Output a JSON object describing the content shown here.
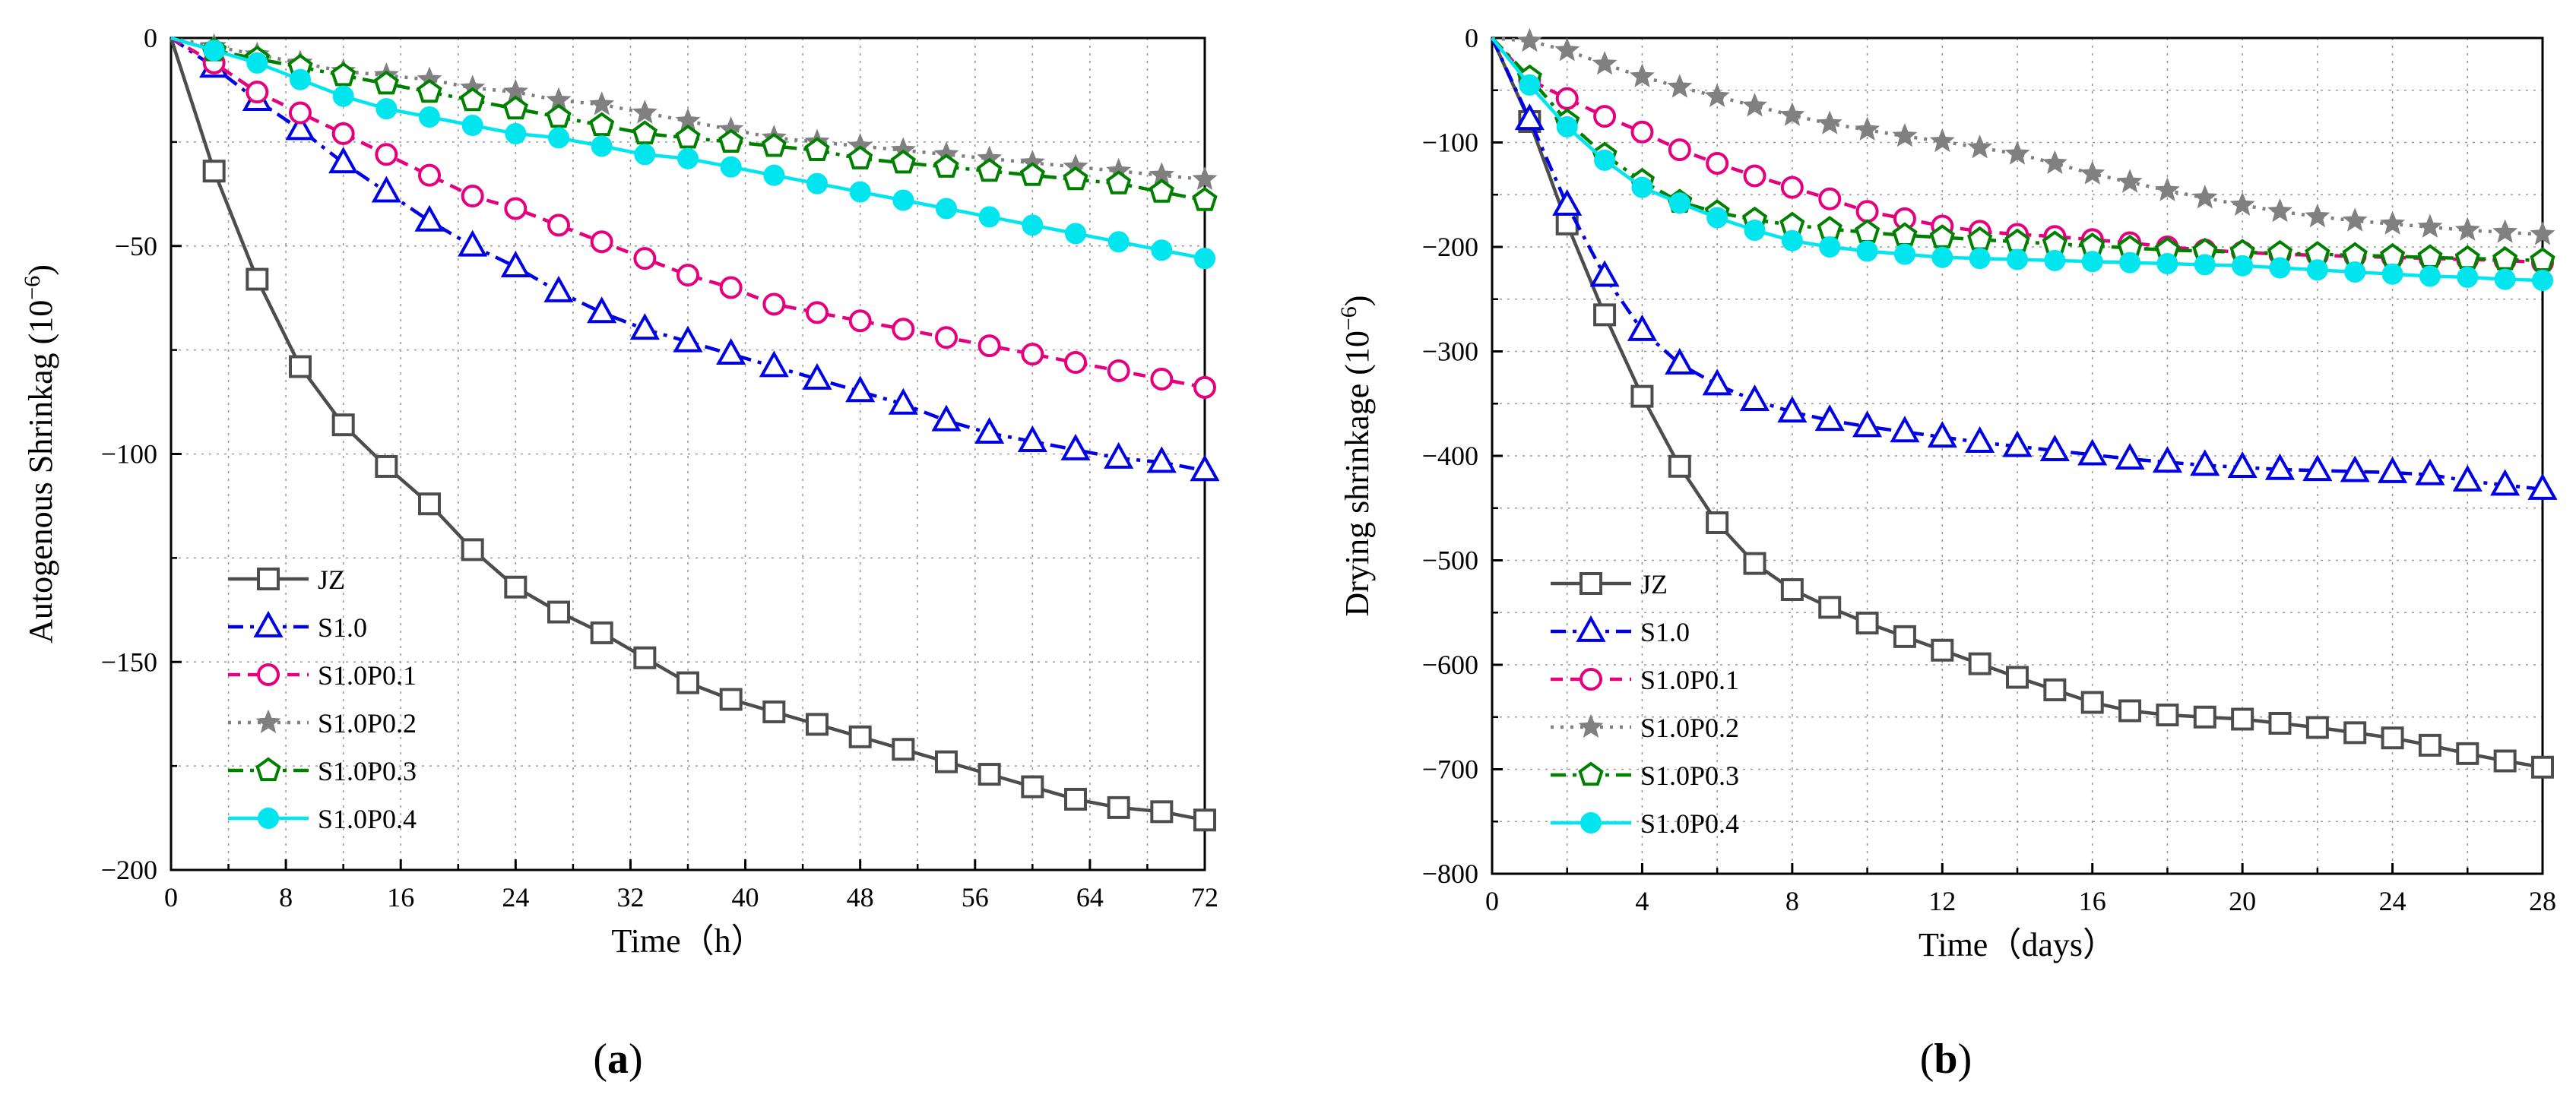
{
  "figure": {
    "panel_labels": [
      {
        "open": "(",
        "letter": "a",
        "close": ")"
      },
      {
        "open": "(",
        "letter": "b",
        "close": ")"
      }
    ]
  },
  "styles": {
    "JZ": {
      "color": "#4d4d4d",
      "dash": "solid",
      "marker": "square"
    },
    "S1.0": {
      "color": "#0000e6",
      "dash": "dashdot",
      "marker": "triangle"
    },
    "S1.0P0.1": {
      "color": "#e6007e",
      "dash": "dash",
      "marker": "circle-open"
    },
    "S1.0P0.2": {
      "color": "#808080",
      "dash": "dot",
      "marker": "star"
    },
    "S1.0P0.3": {
      "color": "#008000",
      "dash": "dashdot",
      "marker": "pentagon"
    },
    "S1.0P0.4": {
      "color": "#00e5ee",
      "dash": "solid",
      "marker": "circle-filled"
    }
  },
  "chart_data": [
    {
      "type": "line",
      "panel": "a",
      "xlabel": "Time（h）",
      "ylabel": "Autogenous Shrinkag (10",
      "ylabel_exp": "−6",
      "ylabel_close": ")",
      "xlim": [
        0,
        72
      ],
      "ylim": [
        -200,
        0
      ],
      "xticks": [
        0,
        8,
        16,
        24,
        32,
        40,
        48,
        56,
        64,
        72
      ],
      "yticks": [
        0,
        -50,
        -100,
        -150,
        -200
      ],
      "grid": true,
      "legend_position": "lower-left",
      "x": [
        0,
        3,
        6,
        9,
        12,
        15,
        18,
        21,
        24,
        27,
        30,
        33,
        36,
        39,
        42,
        45,
        48,
        51,
        54,
        57,
        60,
        63,
        66,
        69,
        72
      ],
      "series": [
        {
          "name": "JZ",
          "values": [
            0,
            -32,
            -58,
            -79,
            -93,
            -103,
            -112,
            -123,
            -132,
            -138,
            -143,
            -149,
            -155,
            -159,
            -162,
            -165,
            -168,
            -171,
            -174,
            -177,
            -180,
            -183,
            -185,
            -186,
            -188
          ]
        },
        {
          "name": "S1.0",
          "values": [
            0,
            -7,
            -15,
            -22,
            -30,
            -37,
            -44,
            -50,
            -55,
            -61,
            -66,
            -70,
            -73,
            -76,
            -79,
            -82,
            -85,
            -88,
            -92,
            -95,
            -97,
            -99,
            -101,
            -102,
            -104
          ]
        },
        {
          "name": "S1.0P0.1",
          "values": [
            0,
            -6,
            -13,
            -18,
            -23,
            -28,
            -33,
            -38,
            -41,
            -45,
            -49,
            -53,
            -57,
            -60,
            -64,
            -66,
            -68,
            -70,
            -72,
            -74,
            -76,
            -78,
            -80,
            -82,
            -84
          ]
        },
        {
          "name": "S1.0P0.2",
          "values": [
            0,
            -2,
            -4,
            -6,
            -8,
            -9,
            -10,
            -12,
            -13,
            -15,
            -16,
            -18,
            -20,
            -22,
            -24,
            -25,
            -26,
            -27,
            -28,
            -29,
            -30,
            -31,
            -32,
            -33,
            -34
          ]
        },
        {
          "name": "S1.0P0.3",
          "values": [
            0,
            -3,
            -5,
            -7,
            -9,
            -11,
            -13,
            -15,
            -17,
            -19,
            -21,
            -23,
            -24,
            -25,
            -26,
            -27,
            -29,
            -30,
            -31,
            -32,
            -33,
            -34,
            -35,
            -37,
            -39
          ]
        },
        {
          "name": "S1.0P0.4",
          "values": [
            0,
            -3,
            -6,
            -10,
            -14,
            -17,
            -19,
            -21,
            -23,
            -24,
            -26,
            -28,
            -29,
            -31,
            -33,
            -35,
            -37,
            -39,
            -41,
            -43,
            -45,
            -47,
            -49,
            -51,
            -53
          ]
        }
      ]
    },
    {
      "type": "line",
      "panel": "b",
      "xlabel": "Time（days）",
      "ylabel": "Drying shrinkage (10",
      "ylabel_exp": "−6",
      "ylabel_close": ")",
      "xlim": [
        0,
        28
      ],
      "ylim": [
        -800,
        0
      ],
      "xticks": [
        0,
        4,
        8,
        12,
        16,
        20,
        24,
        28
      ],
      "yticks": [
        0,
        -100,
        -200,
        -300,
        -400,
        -500,
        -600,
        -700,
        -800
      ],
      "grid": true,
      "legend_position": "lower-left",
      "x": [
        0,
        1,
        2,
        3,
        4,
        5,
        6,
        7,
        8,
        9,
        10,
        11,
        12,
        13,
        14,
        15,
        16,
        17,
        18,
        19,
        20,
        21,
        22,
        23,
        24,
        25,
        26,
        27,
        28
      ],
      "series": [
        {
          "name": "JZ",
          "values": [
            0,
            -80,
            -178,
            -265,
            -343,
            -410,
            -464,
            -503,
            -528,
            -545,
            -560,
            -573,
            -586,
            -599,
            -612,
            -624,
            -636,
            -644,
            -648,
            -650,
            -652,
            -656,
            -660,
            -665,
            -670,
            -677,
            -685,
            -692,
            -698
          ]
        },
        {
          "name": "S1.0",
          "values": [
            0,
            -78,
            -160,
            -228,
            -280,
            -312,
            -332,
            -347,
            -358,
            -366,
            -372,
            -377,
            -382,
            -387,
            -391,
            -395,
            -399,
            -403,
            -406,
            -409,
            -411,
            -413,
            -414,
            -415,
            -416,
            -418,
            -424,
            -428,
            -432
          ]
        },
        {
          "name": "S1.0P0.1",
          "values": [
            0,
            -40,
            -58,
            -75,
            -90,
            -107,
            -120,
            -132,
            -143,
            -154,
            -166,
            -173,
            -180,
            -185,
            -188,
            -190,
            -193,
            -196,
            -200,
            -203,
            -205,
            -207,
            -208,
            -209,
            -210,
            -211,
            -212,
            -213,
            -215
          ]
        },
        {
          "name": "S1.0P0.2",
          "values": [
            0,
            -3,
            -12,
            -25,
            -37,
            -47,
            -56,
            -65,
            -74,
            -82,
            -88,
            -94,
            -99,
            -105,
            -111,
            -120,
            -130,
            -138,
            -146,
            -153,
            -160,
            -166,
            -171,
            -175,
            -178,
            -181,
            -184,
            -186,
            -188
          ]
        },
        {
          "name": "S1.0P0.3",
          "values": [
            0,
            -38,
            -80,
            -112,
            -137,
            -157,
            -167,
            -174,
            -179,
            -183,
            -186,
            -189,
            -191,
            -193,
            -195,
            -197,
            -199,
            -201,
            -203,
            -204,
            -205,
            -206,
            -207,
            -208,
            -209,
            -210,
            -211,
            -212,
            -213
          ]
        },
        {
          "name": "S1.0P0.4",
          "values": [
            0,
            -45,
            -85,
            -117,
            -143,
            -158,
            -172,
            -184,
            -194,
            -200,
            -204,
            -207,
            -210,
            -211,
            -212,
            -213,
            -214,
            -215,
            -216,
            -217,
            -218,
            -220,
            -222,
            -224,
            -226,
            -228,
            -229,
            -231,
            -232
          ]
        }
      ]
    }
  ]
}
